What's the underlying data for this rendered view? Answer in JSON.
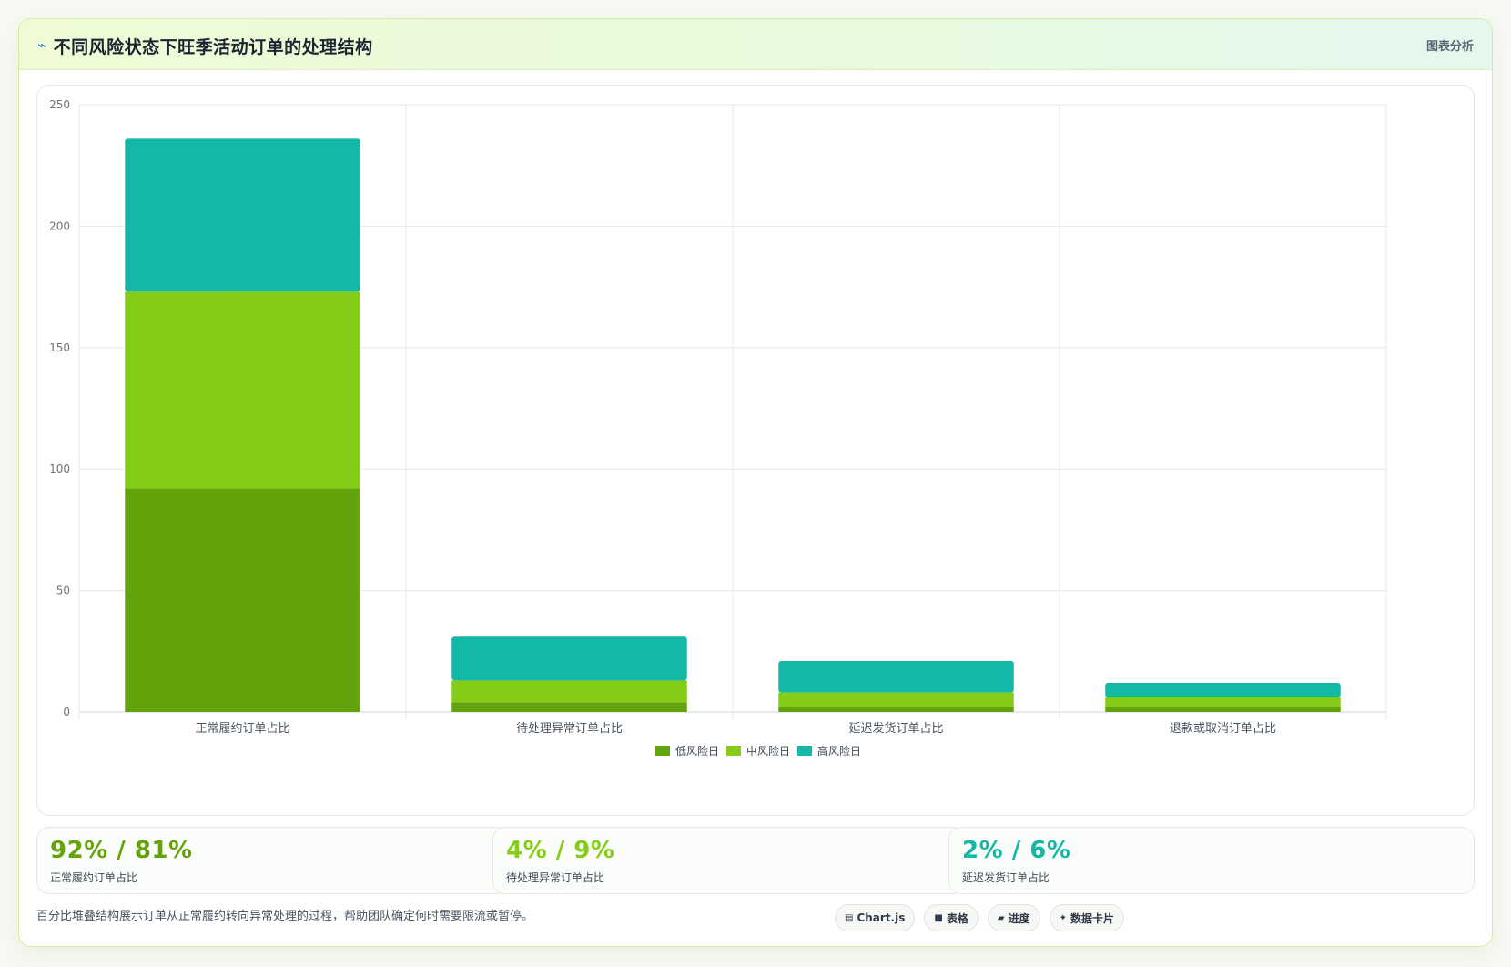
{
  "header": {
    "title": "不同风险状态下旺季活动订单的处理结构",
    "tag": "图表分析"
  },
  "chart_data": {
    "type": "bar",
    "stacked": true,
    "categories": [
      "正常履约订单占比",
      "待处理异常订单占比",
      "延迟发货订单占比",
      "退款或取消订单占比"
    ],
    "series": [
      {
        "name": "低风险日",
        "color": "#65a30d",
        "values": [
          92,
          4,
          2,
          2
        ]
      },
      {
        "name": "中风险日",
        "color": "#84cc16",
        "values": [
          81,
          9,
          6,
          4
        ]
      },
      {
        "name": "高风险日",
        "color": "#14b8a6",
        "values": [
          63,
          18,
          13,
          6
        ]
      }
    ],
    "ylim": [
      0,
      250
    ],
    "yticks": [
      0,
      50,
      100,
      150,
      200,
      250
    ],
    "grid": true,
    "legend": "bottom"
  },
  "stats": [
    {
      "value": "92% / 81%",
      "label": "正常履约订单占比",
      "color": "#65a30d"
    },
    {
      "value": "4% / 9%",
      "label": "待处理异常订单占比",
      "color": "#84cc16"
    },
    {
      "value": "2% / 6%",
      "label": "延迟发货订单占比",
      "color": "#14b8a6"
    }
  ],
  "footer": {
    "note": "百分比堆叠结构展示订单从正常履约转向异常处理的过程，帮助团队确定何时需要限流或暂停。",
    "chips": [
      {
        "icon": "▤",
        "label": "Chart.js"
      },
      {
        "icon": "■",
        "label": "表格"
      },
      {
        "icon": "▰",
        "label": "进度"
      },
      {
        "icon": "✦",
        "label": "数据卡片"
      }
    ]
  }
}
